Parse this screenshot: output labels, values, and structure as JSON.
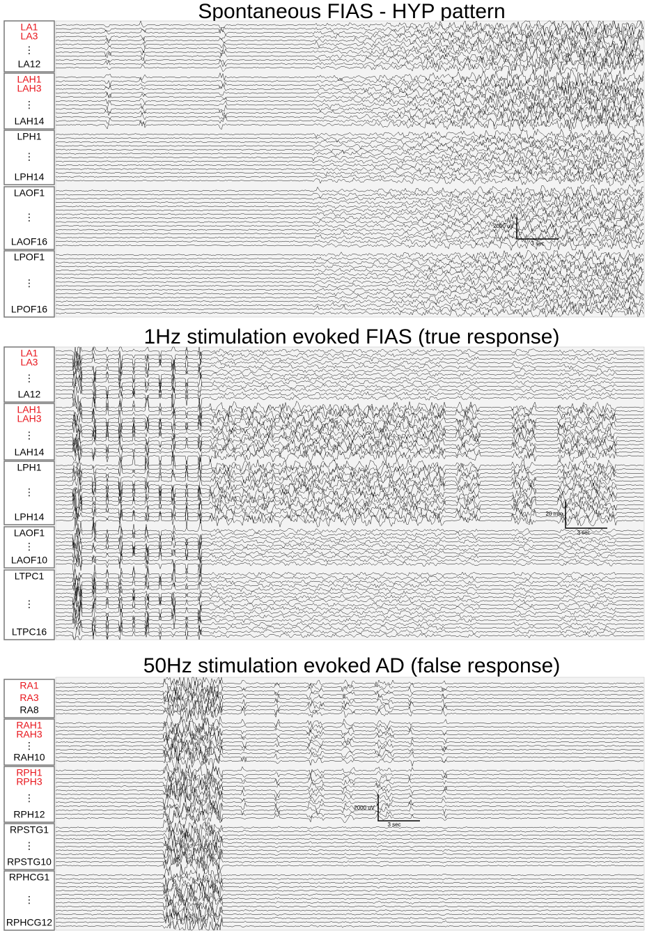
{
  "panels": [
    {
      "title": "Spontaneous FIAS - HYP pattern",
      "groups": [
        {
          "labels": [
            {
              "text": "LA1",
              "color": "#e8141b"
            },
            {
              "text": "LA3",
              "color": "#e8141b"
            },
            {
              "text": "⋮",
              "color": "#000000"
            },
            {
              "text": "LA12",
              "color": "#000000"
            }
          ]
        },
        {
          "labels": [
            {
              "text": "LAH1",
              "color": "#e8141b"
            },
            {
              "text": "LAH3",
              "color": "#e8141b"
            },
            {
              "text": "⋮",
              "color": "#000000"
            },
            {
              "text": "LAH14",
              "color": "#000000"
            }
          ]
        },
        {
          "labels": [
            {
              "text": "LPH1",
              "color": "#000000"
            },
            {
              "text": "⋮",
              "color": "#000000"
            },
            {
              "text": "LPH14",
              "color": "#000000"
            }
          ]
        },
        {
          "labels": [
            {
              "text": "LAOF1",
              "color": "#000000"
            },
            {
              "text": "⋮",
              "color": "#000000"
            },
            {
              "text": "LAOF16",
              "color": "#000000"
            }
          ]
        },
        {
          "labels": [
            {
              "text": "LPOF1",
              "color": "#000000"
            },
            {
              "text": "⋮",
              "color": "#000000"
            },
            {
              "text": "LPOF16",
              "color": "#000000"
            }
          ]
        }
      ],
      "scale": {
        "amplitude": "2000 uV",
        "time": "3 sec"
      }
    },
    {
      "title": "1Hz stimulation evoked FIAS (true response)",
      "groups": [
        {
          "labels": [
            {
              "text": "LA1",
              "color": "#e8141b"
            },
            {
              "text": "LA3",
              "color": "#e8141b"
            },
            {
              "text": "⋮",
              "color": "#000000"
            },
            {
              "text": "LA12",
              "color": "#000000"
            }
          ]
        },
        {
          "labels": [
            {
              "text": "LAH1",
              "color": "#e8141b"
            },
            {
              "text": "LAH3",
              "color": "#e8141b"
            },
            {
              "text": "⋮",
              "color": "#000000"
            },
            {
              "text": "LAH14",
              "color": "#000000"
            }
          ]
        },
        {
          "labels": [
            {
              "text": "LPH1",
              "color": "#000000"
            },
            {
              "text": "⋮",
              "color": "#000000"
            },
            {
              "text": "LPH14",
              "color": "#000000"
            }
          ]
        },
        {
          "labels": [
            {
              "text": "LAOF1",
              "color": "#000000"
            },
            {
              "text": "⋮",
              "color": "#000000"
            },
            {
              "text": "LAOF10",
              "color": "#000000"
            }
          ]
        },
        {
          "labels": [
            {
              "text": "LTPC1",
              "color": "#000000"
            },
            {
              "text": "⋮",
              "color": "#000000"
            },
            {
              "text": "LTPC16",
              "color": "#000000"
            }
          ]
        }
      ],
      "scale": {
        "amplitude": "20 mm",
        "time": "3 sec"
      }
    },
    {
      "title": "50Hz stimulation evoked AD (false response)",
      "groups": [
        {
          "labels": [
            {
              "text": "RA1",
              "color": "#e8141b"
            },
            {
              "text": "RA3",
              "color": "#e8141b"
            },
            {
              "text": "RA8",
              "color": "#000000"
            }
          ]
        },
        {
          "labels": [
            {
              "text": "RAH1",
              "color": "#e8141b"
            },
            {
              "text": "RAH3",
              "color": "#e8141b"
            },
            {
              "text": "⋮",
              "color": "#000000"
            },
            {
              "text": "RAH10",
              "color": "#000000"
            }
          ]
        },
        {
          "labels": [
            {
              "text": "RPH1",
              "color": "#e8141b"
            },
            {
              "text": "RPH3",
              "color": "#e8141b"
            },
            {
              "text": "⋮",
              "color": "#000000"
            },
            {
              "text": "RPH12",
              "color": "#000000"
            }
          ]
        },
        {
          "labels": [
            {
              "text": "RPSTG1",
              "color": "#000000"
            },
            {
              "text": "⋮",
              "color": "#000000"
            },
            {
              "text": "RPSTG10",
              "color": "#000000"
            }
          ]
        },
        {
          "labels": [
            {
              "text": "RPHCG1",
              "color": "#000000"
            },
            {
              "text": "⋮",
              "color": "#000000"
            },
            {
              "text": "RPHCG12",
              "color": "#000000"
            }
          ]
        }
      ],
      "scale": {
        "amplitude": "2000 uV",
        "time": "3 sec"
      }
    }
  ]
}
